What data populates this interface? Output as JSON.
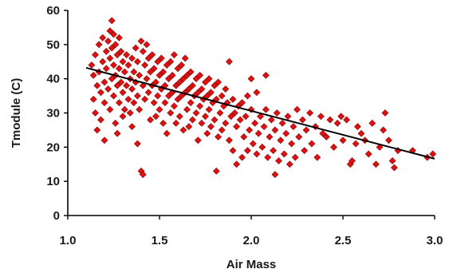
{
  "chart_data": {
    "type": "scatter",
    "title": "",
    "xlabel": "Air Mass",
    "ylabel": "Tmodule (C)",
    "xlim": [
      1.0,
      3.0
    ],
    "ylim": [
      0,
      60
    ],
    "x_ticks": [
      "1.0",
      "1.5",
      "2.0",
      "2.5",
      "3.0"
    ],
    "y_ticks": [
      "0",
      "10",
      "20",
      "30",
      "40",
      "50",
      "60"
    ],
    "grid": false,
    "legend": "none",
    "marker": "diamond",
    "marker_color": "#dd1111",
    "marker_edge_color": "#8b0000",
    "trendline": {
      "type": "linear",
      "x": [
        1.1,
        3.0
      ],
      "y": [
        43.2,
        16.6
      ],
      "color": "#000000"
    },
    "series": [
      {
        "points": [
          [
            1.13,
            44
          ],
          [
            1.14,
            41
          ],
          [
            1.14,
            34
          ],
          [
            1.15,
            47
          ],
          [
            1.15,
            30
          ],
          [
            1.16,
            38
          ],
          [
            1.16,
            25
          ],
          [
            1.17,
            50
          ],
          [
            1.17,
            42
          ],
          [
            1.18,
            36
          ],
          [
            1.18,
            28
          ],
          [
            1.19,
            52
          ],
          [
            1.19,
            45
          ],
          [
            1.2,
            39
          ],
          [
            1.2,
            33
          ],
          [
            1.2,
            22
          ],
          [
            1.21,
            48
          ],
          [
            1.21,
            43
          ],
          [
            1.22,
            51
          ],
          [
            1.22,
            37
          ],
          [
            1.23,
            54
          ],
          [
            1.23,
            46
          ],
          [
            1.23,
            31
          ],
          [
            1.24,
            57
          ],
          [
            1.24,
            49
          ],
          [
            1.24,
            40
          ],
          [
            1.25,
            53
          ],
          [
            1.25,
            44
          ],
          [
            1.25,
            35
          ],
          [
            1.26,
            50
          ],
          [
            1.26,
            41
          ],
          [
            1.26,
            27
          ],
          [
            1.27,
            47
          ],
          [
            1.27,
            38
          ],
          [
            1.27,
            24
          ],
          [
            1.28,
            52
          ],
          [
            1.28,
            43
          ],
          [
            1.28,
            33
          ],
          [
            1.29,
            48
          ],
          [
            1.29,
            39
          ],
          [
            1.3,
            45
          ],
          [
            1.3,
            36
          ],
          [
            1.3,
            29
          ],
          [
            1.31,
            42
          ],
          [
            1.31,
            31
          ],
          [
            1.32,
            47
          ],
          [
            1.32,
            38
          ],
          [
            1.33,
            44
          ],
          [
            1.33,
            34
          ],
          [
            1.34,
            40
          ],
          [
            1.34,
            30
          ],
          [
            1.35,
            46
          ],
          [
            1.35,
            37
          ],
          [
            1.35,
            26
          ],
          [
            1.36,
            42
          ],
          [
            1.36,
            33
          ],
          [
            1.37,
            49
          ],
          [
            1.37,
            39
          ],
          [
            1.38,
            45
          ],
          [
            1.38,
            35
          ],
          [
            1.38,
            21
          ],
          [
            1.39,
            41
          ],
          [
            1.39,
            31
          ],
          [
            1.4,
            51
          ],
          [
            1.4,
            13
          ],
          [
            1.41,
            48
          ],
          [
            1.41,
            38
          ],
          [
            1.41,
            12
          ],
          [
            1.42,
            44
          ],
          [
            1.42,
            34
          ],
          [
            1.43,
            50
          ],
          [
            1.43,
            40
          ],
          [
            1.44,
            46
          ],
          [
            1.44,
            36
          ],
          [
            1.45,
            42
          ],
          [
            1.45,
            28
          ],
          [
            1.46,
            47
          ],
          [
            1.46,
            38
          ],
          [
            1.47,
            43
          ],
          [
            1.47,
            33
          ],
          [
            1.48,
            39
          ],
          [
            1.48,
            29
          ],
          [
            1.49,
            45
          ],
          [
            1.49,
            35
          ],
          [
            1.5,
            41
          ],
          [
            1.5,
            31
          ],
          [
            1.51,
            46
          ],
          [
            1.51,
            37
          ],
          [
            1.52,
            42
          ],
          [
            1.52,
            27
          ],
          [
            1.53,
            38
          ],
          [
            1.53,
            33
          ],
          [
            1.54,
            44
          ],
          [
            1.54,
            24
          ],
          [
            1.55,
            40
          ],
          [
            1.55,
            35
          ],
          [
            1.56,
            45
          ],
          [
            1.56,
            30
          ],
          [
            1.57,
            41
          ],
          [
            1.57,
            36
          ],
          [
            1.58,
            47
          ],
          [
            1.58,
            32
          ],
          [
            1.59,
            38
          ],
          [
            1.59,
            27
          ],
          [
            1.6,
            43
          ],
          [
            1.6,
            34
          ],
          [
            1.61,
            39
          ],
          [
            1.61,
            29
          ],
          [
            1.62,
            44
          ],
          [
            1.62,
            35
          ],
          [
            1.63,
            40
          ],
          [
            1.63,
            25
          ],
          [
            1.64,
            46
          ],
          [
            1.64,
            36
          ],
          [
            1.65,
            41
          ],
          [
            1.65,
            31
          ],
          [
            1.66,
            37
          ],
          [
            1.66,
            26
          ],
          [
            1.67,
            42
          ],
          [
            1.67,
            33
          ],
          [
            1.68,
            38
          ],
          [
            1.68,
            28
          ],
          [
            1.69,
            35
          ],
          [
            1.7,
            40
          ],
          [
            1.7,
            30
          ],
          [
            1.71,
            36
          ],
          [
            1.71,
            22
          ],
          [
            1.72,
            41
          ],
          [
            1.72,
            32
          ],
          [
            1.73,
            37
          ],
          [
            1.73,
            27
          ],
          [
            1.74,
            34
          ],
          [
            1.75,
            39
          ],
          [
            1.75,
            29
          ],
          [
            1.76,
            35
          ],
          [
            1.76,
            24
          ],
          [
            1.77,
            40
          ],
          [
            1.77,
            31
          ],
          [
            1.78,
            36
          ],
          [
            1.78,
            26
          ],
          [
            1.79,
            33
          ],
          [
            1.8,
            38
          ],
          [
            1.8,
            28
          ],
          [
            1.81,
            13
          ],
          [
            1.81,
            34
          ],
          [
            1.82,
            23
          ],
          [
            1.82,
            39
          ],
          [
            1.83,
            30
          ],
          [
            1.84,
            35
          ],
          [
            1.84,
            25
          ],
          [
            1.85,
            32
          ],
          [
            1.86,
            37
          ],
          [
            1.86,
            27
          ],
          [
            1.87,
            33
          ],
          [
            1.88,
            45
          ],
          [
            1.88,
            22
          ],
          [
            1.89,
            29
          ],
          [
            1.9,
            34
          ],
          [
            1.9,
            19
          ],
          [
            1.91,
            30
          ],
          [
            1.92,
            15
          ],
          [
            1.92,
            26
          ],
          [
            1.93,
            32
          ],
          [
            1.94,
            28
          ],
          [
            1.95,
            33
          ],
          [
            1.95,
            17
          ],
          [
            1.96,
            23
          ],
          [
            1.97,
            29
          ],
          [
            1.98,
            35
          ],
          [
            1.98,
            19
          ],
          [
            1.99,
            25
          ],
          [
            2.0,
            40
          ],
          [
            2.0,
            31
          ],
          [
            2.01,
            21
          ],
          [
            2.02,
            27
          ],
          [
            2.03,
            36
          ],
          [
            2.03,
            18
          ],
          [
            2.04,
            24
          ],
          [
            2.05,
            29
          ],
          [
            2.06,
            20
          ],
          [
            2.07,
            26
          ],
          [
            2.08,
            41
          ],
          [
            2.08,
            31
          ],
          [
            2.09,
            17
          ],
          [
            2.1,
            23
          ],
          [
            2.11,
            28
          ],
          [
            2.12,
            19
          ],
          [
            2.13,
            12
          ],
          [
            2.13,
            25
          ],
          [
            2.14,
            30
          ],
          [
            2.15,
            16
          ],
          [
            2.16,
            22
          ],
          [
            2.17,
            27
          ],
          [
            2.18,
            18
          ],
          [
            2.19,
            24
          ],
          [
            2.2,
            29
          ],
          [
            2.21,
            15
          ],
          [
            2.22,
            21
          ],
          [
            2.23,
            26
          ],
          [
            2.24,
            17
          ],
          [
            2.25,
            31
          ],
          [
            2.26,
            23
          ],
          [
            2.28,
            28
          ],
          [
            2.29,
            19
          ],
          [
            2.3,
            25
          ],
          [
            2.32,
            30
          ],
          [
            2.33,
            21
          ],
          [
            2.35,
            26
          ],
          [
            2.36,
            17
          ],
          [
            2.38,
            29
          ],
          [
            2.39,
            24
          ],
          [
            2.41,
            23
          ],
          [
            2.43,
            28
          ],
          [
            2.45,
            20
          ],
          [
            2.47,
            27
          ],
          [
            2.49,
            29
          ],
          [
            2.5,
            22
          ],
          [
            2.52,
            28
          ],
          [
            2.54,
            15
          ],
          [
            2.55,
            16
          ],
          [
            2.57,
            21
          ],
          [
            2.58,
            26
          ],
          [
            2.6,
            24
          ],
          [
            2.62,
            22
          ],
          [
            2.64,
            18
          ],
          [
            2.66,
            27
          ],
          [
            2.68,
            15
          ],
          [
            2.7,
            20
          ],
          [
            2.72,
            25
          ],
          [
            2.73,
            30
          ],
          [
            2.75,
            22
          ],
          [
            2.77,
            16
          ],
          [
            2.78,
            14
          ],
          [
            2.8,
            19
          ],
          [
            2.88,
            19
          ],
          [
            2.96,
            17
          ],
          [
            2.99,
            18
          ]
        ]
      }
    ]
  }
}
